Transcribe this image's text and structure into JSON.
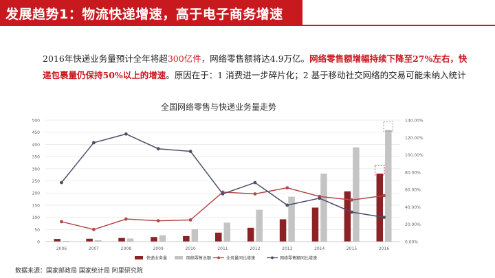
{
  "header": {
    "title": "发展趋势1：物流快递增速，高于电子商务增速"
  },
  "summary": {
    "p1": "2016年快递业务量预计全年将超",
    "p2": "300亿件",
    "p3": "，网络零售额将达4.9万亿。",
    "p4": "网络零售额增幅持续下降至27%左右，快递包裹量仍保持50%以上的增速",
    "p5": "。原因在于：1 消费进一步碎片化；2 基于移动社交网络的交易可能未纳入统计"
  },
  "chart_data": {
    "type": "bar",
    "title": "全国网络零售与快递业务量走势",
    "categories": [
      "2006",
      "2007",
      "2008",
      "2009",
      "2010",
      "2011",
      "2012",
      "2013",
      "2014",
      "2015",
      "2016"
    ],
    "y_left": {
      "range": [
        0,
        500
      ],
      "ticks": [
        "0",
        "50",
        "100",
        "150",
        "200",
        "250",
        "300",
        "350",
        "400",
        "450",
        "500"
      ]
    },
    "y_right": {
      "range": [
        0,
        140
      ],
      "ticks": [
        "0.00%",
        "20.00%",
        "40.00%",
        "60.00%",
        "80.00%",
        "100.00%",
        "120.00%",
        "140.00%"
      ]
    },
    "series": [
      {
        "name": "快递业务量",
        "kind": "bar",
        "axis": "left",
        "color": "#8b2226",
        "values": [
          11,
          12,
          15,
          19,
          23,
          37,
          57,
          92,
          140,
          207,
          280
        ]
      },
      {
        "name": "网络零售总额",
        "kind": "bar",
        "axis": "left",
        "color": "#c4c4c4",
        "values": [
          3,
          6,
          13,
          26,
          51,
          78,
          131,
          185,
          280,
          388,
          460
        ]
      },
      {
        "name": "业务量同比增速",
        "kind": "line",
        "axis": "right",
        "color": "#b5484a",
        "values": [
          23,
          14,
          26,
          24,
          25,
          57,
          55,
          62,
          52,
          48,
          53
        ]
      },
      {
        "name": "网络零售额同比增速",
        "kind": "line",
        "axis": "right",
        "color": "#4e4e6a",
        "values": [
          68,
          114,
          124,
          107,
          104,
          55,
          68,
          42,
          50,
          34,
          28
        ]
      }
    ],
    "grid": true,
    "legend": "bottom"
  },
  "source": "数据来源：国家邮政局  国家统计局  阿里研究院"
}
